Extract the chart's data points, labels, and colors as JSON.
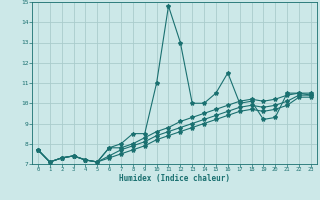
{
  "xlabel": "Humidex (Indice chaleur)",
  "ylabel": "",
  "bg_color": "#cce8e8",
  "grid_color": "#aacccc",
  "line_color": "#1a7070",
  "xlim": [
    -0.5,
    23.5
  ],
  "ylim": [
    7,
    15
  ],
  "xticks": [
    0,
    1,
    2,
    3,
    4,
    5,
    6,
    7,
    8,
    9,
    10,
    11,
    12,
    13,
    14,
    15,
    16,
    17,
    18,
    19,
    20,
    21,
    22,
    23
  ],
  "yticks": [
    7,
    8,
    9,
    10,
    11,
    12,
    13,
    14,
    15
  ],
  "series": [
    [
      7.7,
      7.1,
      7.3,
      7.4,
      7.2,
      7.1,
      7.8,
      8.0,
      8.5,
      8.5,
      11.0,
      14.8,
      13.0,
      10.0,
      10.0,
      10.5,
      11.5,
      10.0,
      10.1,
      9.2,
      9.3,
      10.5,
      10.5,
      10.5
    ],
    [
      7.7,
      7.1,
      7.3,
      7.4,
      7.2,
      7.1,
      7.8,
      7.8,
      8.0,
      8.3,
      8.6,
      8.8,
      9.1,
      9.3,
      9.5,
      9.7,
      9.9,
      10.1,
      10.2,
      10.1,
      10.2,
      10.4,
      10.5,
      10.4
    ],
    [
      7.7,
      7.1,
      7.3,
      7.4,
      7.2,
      7.1,
      7.4,
      7.7,
      7.9,
      8.1,
      8.4,
      8.6,
      8.8,
      9.0,
      9.2,
      9.4,
      9.6,
      9.8,
      9.9,
      9.8,
      9.9,
      10.1,
      10.4,
      10.4
    ],
    [
      7.7,
      7.1,
      7.3,
      7.4,
      7.2,
      7.1,
      7.3,
      7.5,
      7.7,
      7.9,
      8.2,
      8.4,
      8.6,
      8.8,
      9.0,
      9.2,
      9.4,
      9.6,
      9.7,
      9.6,
      9.7,
      9.9,
      10.3,
      10.3
    ]
  ]
}
